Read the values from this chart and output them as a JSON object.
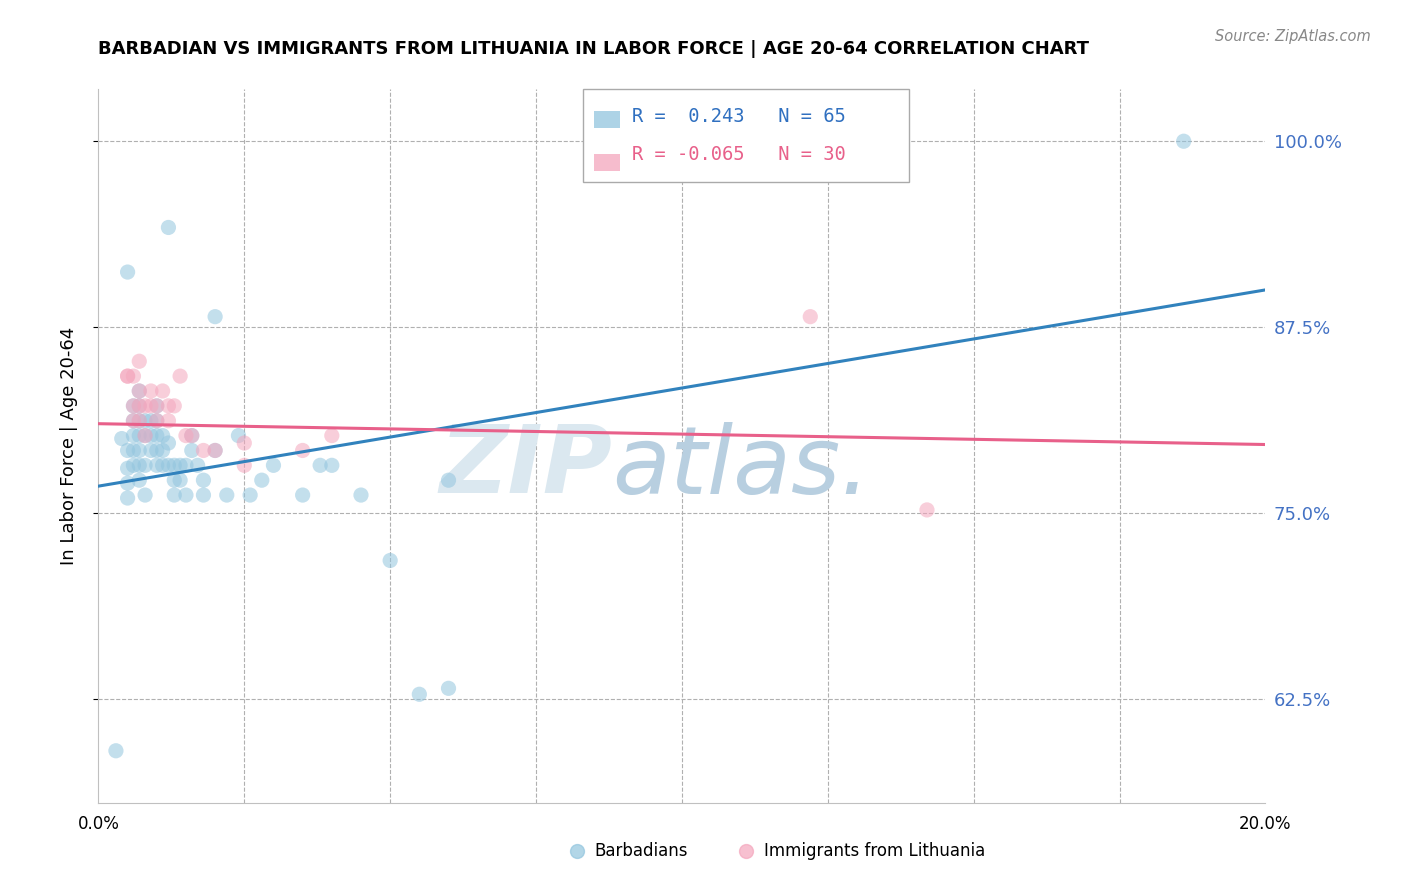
{
  "title": "BARBADIAN VS IMMIGRANTS FROM LITHUANIA IN LABOR FORCE | AGE 20-64 CORRELATION CHART",
  "source": "Source: ZipAtlas.com",
  "ylabel": "In Labor Force | Age 20-64",
  "ytick_labels": [
    "62.5%",
    "75.0%",
    "87.5%",
    "100.0%"
  ],
  "ytick_values": [
    0.625,
    0.75,
    0.875,
    1.0
  ],
  "xlim": [
    0.0,
    0.2
  ],
  "ylim": [
    0.555,
    1.035
  ],
  "legend_r_blue": "0.243",
  "legend_n_blue": "65",
  "legend_r_pink": "-0.065",
  "legend_n_pink": "30",
  "blue_color": "#92c5de",
  "pink_color": "#f4a6bd",
  "blue_line_color": "#3182bd",
  "pink_line_color": "#e8608a",
  "watermark_zip": "ZIP",
  "watermark_atlas": "atlas.",
  "watermark_color_zip": "#dbe8f0",
  "watermark_color_atlas": "#b8cfe0",
  "blue_scatter": [
    [
      0.004,
      0.8
    ],
    [
      0.005,
      0.78
    ],
    [
      0.005,
      0.76
    ],
    [
      0.005,
      0.77
    ],
    [
      0.005,
      0.792
    ],
    [
      0.006,
      0.802
    ],
    [
      0.006,
      0.812
    ],
    [
      0.006,
      0.822
    ],
    [
      0.006,
      0.792
    ],
    [
      0.006,
      0.782
    ],
    [
      0.007,
      0.802
    ],
    [
      0.007,
      0.812
    ],
    [
      0.007,
      0.822
    ],
    [
      0.007,
      0.832
    ],
    [
      0.007,
      0.792
    ],
    [
      0.007,
      0.782
    ],
    [
      0.007,
      0.772
    ],
    [
      0.008,
      0.802
    ],
    [
      0.008,
      0.812
    ],
    [
      0.008,
      0.782
    ],
    [
      0.008,
      0.762
    ],
    [
      0.009,
      0.802
    ],
    [
      0.009,
      0.812
    ],
    [
      0.009,
      0.792
    ],
    [
      0.01,
      0.812
    ],
    [
      0.01,
      0.822
    ],
    [
      0.01,
      0.802
    ],
    [
      0.01,
      0.792
    ],
    [
      0.01,
      0.782
    ],
    [
      0.011,
      0.802
    ],
    [
      0.011,
      0.792
    ],
    [
      0.011,
      0.782
    ],
    [
      0.012,
      0.797
    ],
    [
      0.012,
      0.782
    ],
    [
      0.013,
      0.782
    ],
    [
      0.013,
      0.772
    ],
    [
      0.013,
      0.762
    ],
    [
      0.014,
      0.772
    ],
    [
      0.014,
      0.782
    ],
    [
      0.015,
      0.762
    ],
    [
      0.015,
      0.782
    ],
    [
      0.016,
      0.792
    ],
    [
      0.016,
      0.802
    ],
    [
      0.017,
      0.782
    ],
    [
      0.018,
      0.762
    ],
    [
      0.018,
      0.772
    ],
    [
      0.02,
      0.792
    ],
    [
      0.022,
      0.762
    ],
    [
      0.024,
      0.802
    ],
    [
      0.026,
      0.762
    ],
    [
      0.028,
      0.772
    ],
    [
      0.03,
      0.782
    ],
    [
      0.035,
      0.762
    ],
    [
      0.038,
      0.782
    ],
    [
      0.04,
      0.782
    ],
    [
      0.045,
      0.762
    ],
    [
      0.05,
      0.718
    ],
    [
      0.055,
      0.628
    ],
    [
      0.06,
      0.632
    ],
    [
      0.06,
      0.772
    ],
    [
      0.005,
      0.912
    ],
    [
      0.012,
      0.942
    ],
    [
      0.02,
      0.882
    ],
    [
      0.186,
      1.0
    ],
    [
      0.003,
      0.59
    ]
  ],
  "pink_scatter": [
    [
      0.005,
      0.842
    ],
    [
      0.006,
      0.842
    ],
    [
      0.006,
      0.822
    ],
    [
      0.006,
      0.812
    ],
    [
      0.007,
      0.832
    ],
    [
      0.007,
      0.822
    ],
    [
      0.007,
      0.812
    ],
    [
      0.008,
      0.822
    ],
    [
      0.008,
      0.802
    ],
    [
      0.009,
      0.832
    ],
    [
      0.009,
      0.822
    ],
    [
      0.01,
      0.822
    ],
    [
      0.01,
      0.812
    ],
    [
      0.011,
      0.832
    ],
    [
      0.012,
      0.822
    ],
    [
      0.012,
      0.812
    ],
    [
      0.013,
      0.822
    ],
    [
      0.014,
      0.842
    ],
    [
      0.015,
      0.802
    ],
    [
      0.016,
      0.802
    ],
    [
      0.018,
      0.792
    ],
    [
      0.02,
      0.792
    ],
    [
      0.025,
      0.797
    ],
    [
      0.025,
      0.782
    ],
    [
      0.035,
      0.792
    ],
    [
      0.04,
      0.802
    ],
    [
      0.122,
      0.882
    ],
    [
      0.142,
      0.752
    ],
    [
      0.005,
      0.842
    ],
    [
      0.007,
      0.852
    ]
  ],
  "blue_trendline": [
    [
      0.0,
      0.768
    ],
    [
      0.2,
      0.9
    ]
  ],
  "pink_trendline": [
    [
      0.0,
      0.81
    ],
    [
      0.2,
      0.796
    ]
  ]
}
